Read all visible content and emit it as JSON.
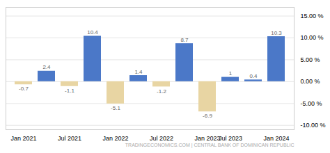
{
  "chart_data": {
    "type": "bar",
    "categories": [
      "Jan 2021",
      null,
      "Jul 2021",
      null,
      "Jan 2022",
      null,
      "Jul 2022",
      null,
      "Jan 2023",
      "Jul 2023",
      null,
      "Jan 2024"
    ],
    "values": [
      -0.7,
      2.4,
      -1.1,
      10.4,
      -5.1,
      1.4,
      -1.2,
      8.7,
      -6.9,
      1.0,
      0.4,
      10.3
    ],
    "colors": [
      "#e8d5a3",
      "#4b78c8",
      "#e8d5a3",
      "#4b78c8",
      "#e8d5a3",
      "#4b78c8",
      "#e8d5a3",
      "#4b78c8",
      "#e8d5a3",
      "#4b78c8",
      "#4b78c8",
      "#4b78c8"
    ],
    "data_labels": true,
    "ylim": [
      -11,
      17
    ],
    "yticks": [
      {
        "value": -10,
        "label": "-10.00 %"
      },
      {
        "value": -5,
        "label": "-5.00 %"
      },
      {
        "value": 0,
        "label": "0.00 %"
      },
      {
        "value": 5,
        "label": "5.00 %"
      },
      {
        "value": 10,
        "label": "10.00 %"
      },
      {
        "value": 15,
        "label": "15.00 %"
      }
    ],
    "grid": true,
    "annotations": [
      "TRADINGECONOMICS.COM | CENTRAL BANK OF DOMINICAN REPUBLIC"
    ]
  }
}
